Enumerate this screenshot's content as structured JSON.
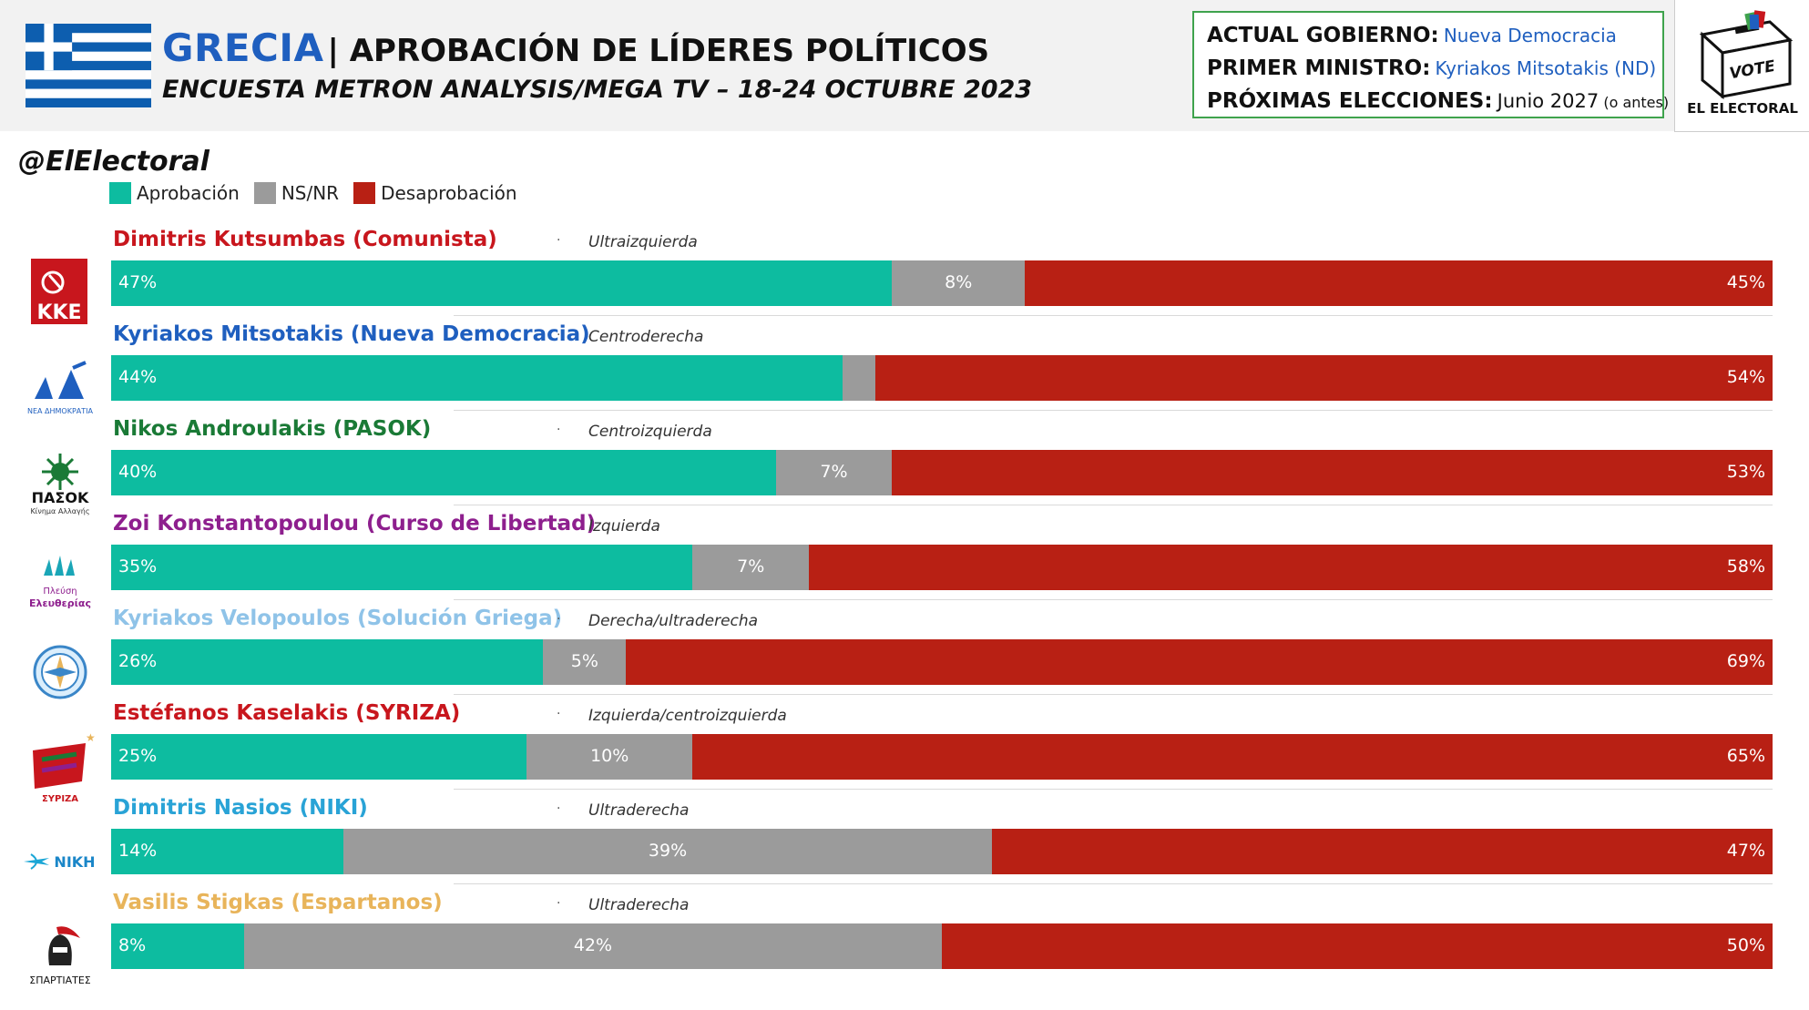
{
  "header": {
    "country": "GRECIA",
    "title": "| APROBACIÓN DE LÍDERES POLÍTICOS",
    "subtitle": "ENCUESTA METRON ANALYSIS/MEGA TV – 18-24 OCTUBRE 2023"
  },
  "info": {
    "gov_key": "ACTUAL GOBIERNO:",
    "gov_val": "Nueva Democracia",
    "pm_key": "PRIMER MINISTRO:",
    "pm_val": "Kyriakos Mitsotakis (ND)",
    "elec_key": "PRÓXIMAS ELECCIONES:",
    "elec_val": "Junio 2027",
    "elec_note": "(o antes)"
  },
  "brand": {
    "vote_text": "VOTE",
    "name": "EL ELECTORAL"
  },
  "handle": "@ElElectoral",
  "legend": [
    {
      "label": "Aprobación",
      "color": "#0dbca0"
    },
    {
      "label": "NS/NR",
      "color": "#9b9b9b"
    },
    {
      "label": "Desaprobación",
      "color": "#b82014"
    }
  ],
  "chart_data": {
    "type": "bar",
    "stacked": true,
    "orientation": "horizontal",
    "value_unit": "%",
    "categories": [
      "Dimitris Kutsumbas (Comunista)",
      "Kyriakos Mitsotakis (Nueva Democracia)",
      "Nikos Androulakis (PASOK)",
      "Zoi Konstantopoulou (Curso de Libertad)",
      "Kyriakos Velopoulos (Solución Griega)",
      "Estéfanos Kaselakis (SYRIZA)",
      "Dimitris Nasios (NIKI)",
      "Vasilis Stigkas (Espartanos)"
    ],
    "series": [
      {
        "name": "Aprobación",
        "color": "#0dbca0",
        "values": [
          47,
          44,
          40,
          35,
          26,
          25,
          14,
          8
        ]
      },
      {
        "name": "NS/NR",
        "color": "#9b9b9b",
        "values": [
          8,
          2,
          7,
          7,
          5,
          10,
          39,
          42
        ]
      },
      {
        "name": "Desaprobación",
        "color": "#b82014",
        "values": [
          45,
          54,
          53,
          58,
          69,
          65,
          47,
          50
        ]
      }
    ],
    "xlim": [
      0,
      100
    ],
    "legend_position": "top-left",
    "grid": false
  },
  "leaders": [
    {
      "name": "Dimitris Kutsumbas (Comunista)",
      "name_color": "#c8161d",
      "ideology": "Ultraizquierda",
      "party_logo_text": "KKE",
      "logo_icon": "kke-logo-icon",
      "labels": [
        "47%",
        "8%",
        "45%"
      ]
    },
    {
      "name": "Kyriakos Mitsotakis (Nueva Democracia)",
      "name_color": "#1f5fbf",
      "ideology": "Centroderecha",
      "party_logo_text": "ΝΕΑ ΔΗΜΟΚΡΑΤΙΑ",
      "logo_icon": "nd-logo-icon",
      "labels": [
        "44%",
        "",
        "54%"
      ]
    },
    {
      "name": "Nikos Androulakis (PASOK)",
      "name_color": "#1a7a36",
      "ideology": "Centroizquierda",
      "party_logo_text": "ΠΑΣΟΚ",
      "party_logo_sub": "Κίνημα Αλλαγής",
      "logo_icon": "pasok-logo-icon",
      "labels": [
        "40%",
        "7%",
        "53%"
      ]
    },
    {
      "name": "Zoi Konstantopoulou (Curso de Libertad)",
      "name_color": "#8e1f8e",
      "ideology": "Izquierda",
      "party_logo_text": "Πλεύση",
      "party_logo_sub": "Ελευθερίας",
      "logo_icon": "plefsi-logo-icon",
      "labels": [
        "35%",
        "7%",
        "58%"
      ]
    },
    {
      "name": "Kyriakos Velopoulos (Solución Griega)",
      "name_color": "#8fc3e8",
      "ideology": "Derecha/ultraderecha",
      "logo_icon": "elliniki-lysi-logo-icon",
      "labels": [
        "26%",
        "5%",
        "69%"
      ]
    },
    {
      "name": "Estéfanos Kaselakis (SYRIZA)",
      "name_color": "#c8161d",
      "ideology": "Izquierda/centroizquierda",
      "party_logo_text": "ΣΥΡΙΖΑ",
      "logo_icon": "syriza-logo-icon",
      "labels": [
        "25%",
        "10%",
        "65%"
      ]
    },
    {
      "name": "Dimitris Nasios (NIKI)",
      "name_color": "#29a3d6",
      "ideology": "Ultraderecha",
      "party_logo_text": "NIKH",
      "logo_icon": "niki-logo-icon",
      "labels": [
        "14%",
        "39%",
        "47%"
      ]
    },
    {
      "name": "Vasilis Stigkas (Espartanos)",
      "name_color": "#e8b45a",
      "ideology": "Ultraderecha",
      "party_logo_text": "ΣΠΑΡΤΙΑΤΕΣ",
      "logo_icon": "spartiates-logo-icon",
      "labels": [
        "8%",
        "42%",
        "50%"
      ]
    }
  ]
}
